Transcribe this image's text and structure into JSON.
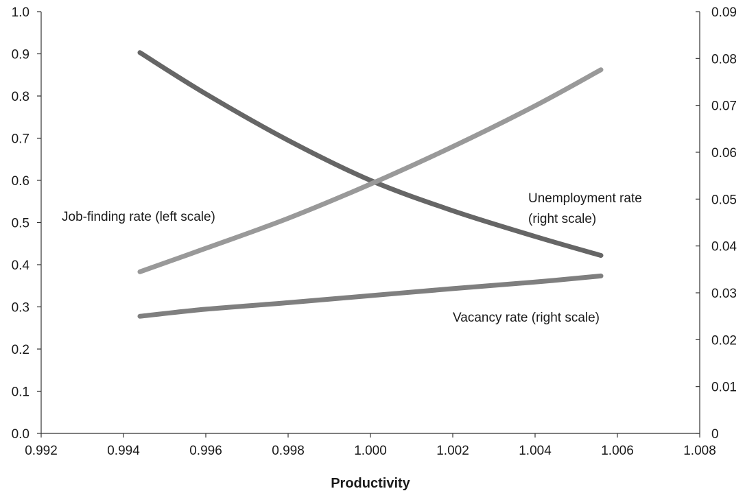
{
  "chart_data": {
    "type": "line",
    "title": "",
    "xlabel": "Productivity",
    "ylabel_left": "",
    "ylabel_right": "",
    "xlim": [
      0.992,
      1.008
    ],
    "ylim_left": [
      0,
      1.0
    ],
    "ylim_right": [
      0,
      0.09
    ],
    "x_ticks": [
      "0.992",
      "0.994",
      "0.996",
      "0.998",
      "1.000",
      "1.002",
      "1.004",
      "1.006",
      "1.008"
    ],
    "y_left_ticks": [
      "0.0",
      "0.1",
      "0.2",
      "0.3",
      "0.4",
      "0.5",
      "0.6",
      "0.7",
      "0.8",
      "0.9",
      "1.0"
    ],
    "y_right_ticks": [
      "0",
      "0.01",
      "0.02",
      "0.03",
      "0.04",
      "0.05",
      "0.06",
      "0.07",
      "0.08",
      "0.09"
    ],
    "grid": false,
    "series": [
      {
        "name": "Job-finding rate (left scale)",
        "label_lines": [
          "Job-finding rate (left scale)"
        ],
        "axis": "left",
        "color": "#666666",
        "x": [
          0.9944,
          0.996,
          0.998,
          1.0,
          1.002,
          1.004,
          1.0056
        ],
        "y": [
          0.903,
          0.805,
          0.695,
          0.6,
          0.528,
          0.467,
          0.422
        ]
      },
      {
        "name": "Unemployment rate (right scale)",
        "label_lines": [
          "Unemployment rate",
          "(right scale)"
        ],
        "axis": "right",
        "color": "#999999",
        "x": [
          0.9944,
          0.996,
          0.998,
          1.0,
          1.002,
          1.004,
          1.0056
        ],
        "y": [
          0.0345,
          0.0395,
          0.0459,
          0.0532,
          0.0612,
          0.0699,
          0.0776
        ]
      },
      {
        "name": "Vacancy rate (right scale)",
        "label_lines": [
          "Vacancy rate (right scale)"
        ],
        "axis": "right",
        "color": "#7f7f7f",
        "x": [
          0.9944,
          0.996,
          0.998,
          1.0,
          1.002,
          1.004,
          1.0056
        ],
        "y": [
          0.025,
          0.0265,
          0.0279,
          0.0294,
          0.0309,
          0.0323,
          0.0336
        ]
      }
    ]
  }
}
